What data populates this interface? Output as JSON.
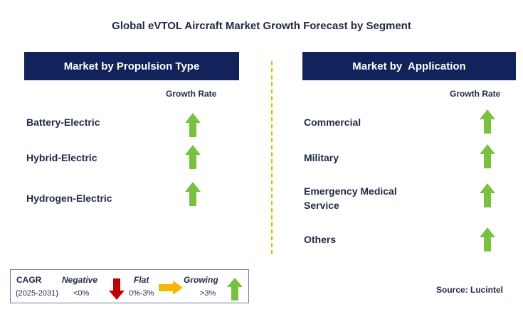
{
  "title": "Global eVTOL Aircraft Market Growth Forecast by Segment",
  "left_panel": {
    "header": "Market by Propulsion Type",
    "growth_rate_label": "Growth Rate",
    "items": [
      {
        "label": "Battery-Electric",
        "trend": "growing"
      },
      {
        "label": "Hybrid-Electric",
        "trend": "growing"
      },
      {
        "label": "Hydrogen-Electric",
        "trend": "growing"
      }
    ]
  },
  "right_panel": {
    "header": "Market by  Application",
    "growth_rate_label": "Growth Rate",
    "items": [
      {
        "label": "Commercial",
        "trend": "growing"
      },
      {
        "label": "Military",
        "trend": "growing"
      },
      {
        "label": "Emergency Medical Service",
        "trend": "growing"
      },
      {
        "label": "Others",
        "trend": "growing"
      }
    ]
  },
  "legend": {
    "cagr_label": "CAGR",
    "period": "(2025-2031)",
    "negative_label": "Negative",
    "negative_range": "<0%",
    "flat_label": "Flat",
    "flat_range": "0%-3%",
    "growing_label": "Growing",
    "growing_range": ">3%"
  },
  "source": "Source: Lucintel",
  "colors": {
    "header_bg": "#12225a",
    "growing": "#7ac142",
    "negative": "#c00000",
    "flat": "#f5b800",
    "divider": "#f0b400"
  }
}
